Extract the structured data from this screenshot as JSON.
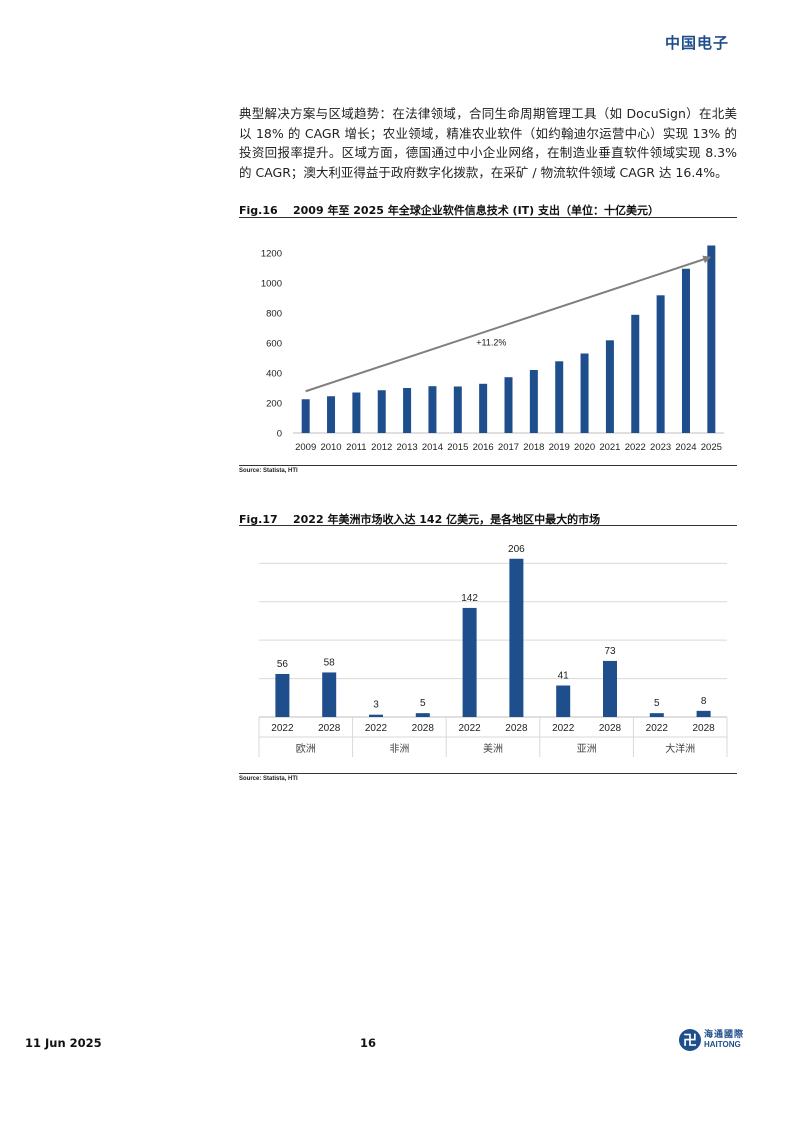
{
  "header": {
    "brand": "中国电子"
  },
  "intro_paragraph": "典型解决方案与区域趋势：在法律领域，合同生命周期管理工具（如 DocuSign）在北美以 18% 的 CAGR 增长；农业领域，精准农业软件（如约翰迪尔运营中心）实现 13% 的投资回报率提升。区域方面，德国通过中小企业网络，在制造业垂直软件领域实现 8.3% 的 CAGR；澳大利亚得益于政府数字化拨款，在采矿 / 物流软件领域 CAGR 达 16.4%。",
  "fig16": {
    "label": "Fig.16",
    "title": "2009 年至 2025 年全球企业软件信息技术 (IT) 支出（单位：十亿美元）",
    "source": "Source: Statista, HTI"
  },
  "fig17": {
    "label": "Fig.17",
    "title": "2022 年美洲市场收入达 142 亿美元，是各地区中最大的市场",
    "source": "Source: Statista, HTI"
  },
  "footer": {
    "date": "11 Jun 2025",
    "page": "16",
    "logo_cn": "海通國際",
    "logo_en": "HAITONG"
  },
  "colors": {
    "bar": "#1f4e8c",
    "brand": "#1f4e8c",
    "trend_arrow": "#7f7f7f"
  },
  "chart_data": [
    {
      "type": "bar",
      "categories": [
        "2009",
        "2010",
        "2011",
        "2012",
        "2013",
        "2014",
        "2015",
        "2016",
        "2017",
        "2018",
        "2019",
        "2020",
        "2021",
        "2022",
        "2023",
        "2024",
        "2025"
      ],
      "values": [
        225,
        245,
        270,
        285,
        300,
        312,
        310,
        328,
        372,
        420,
        478,
        530,
        618,
        788,
        918,
        1095,
        1250
      ],
      "ylim": [
        0,
        1200
      ],
      "yticks": [
        0,
        200,
        400,
        600,
        800,
        1000,
        1200
      ],
      "annotation": "+11.2%",
      "title": "2009 年至 2025 年全球企业软件信息技术 (IT) 支出（单位：十亿美元）",
      "grid": false,
      "legend": "none"
    },
    {
      "type": "bar",
      "groups": [
        {
          "name": "欧洲",
          "categories": [
            "2022",
            "2028"
          ],
          "values": [
            56,
            58
          ]
        },
        {
          "name": "非洲",
          "categories": [
            "2022",
            "2028"
          ],
          "values": [
            3,
            5
          ]
        },
        {
          "name": "美洲",
          "categories": [
            "2022",
            "2028"
          ],
          "values": [
            142,
            206
          ]
        },
        {
          "name": "亚洲",
          "categories": [
            "2022",
            "2028"
          ],
          "values": [
            41,
            73
          ]
        },
        {
          "name": "大洋洲",
          "categories": [
            "2022",
            "2028"
          ],
          "values": [
            5,
            8
          ]
        }
      ],
      "ylim": [
        0,
        220
      ],
      "title": "2022 年美洲市场收入达 142 亿美元，是各地区中最大的市场",
      "grid": true,
      "legend": "none",
      "data_labels": true
    }
  ]
}
